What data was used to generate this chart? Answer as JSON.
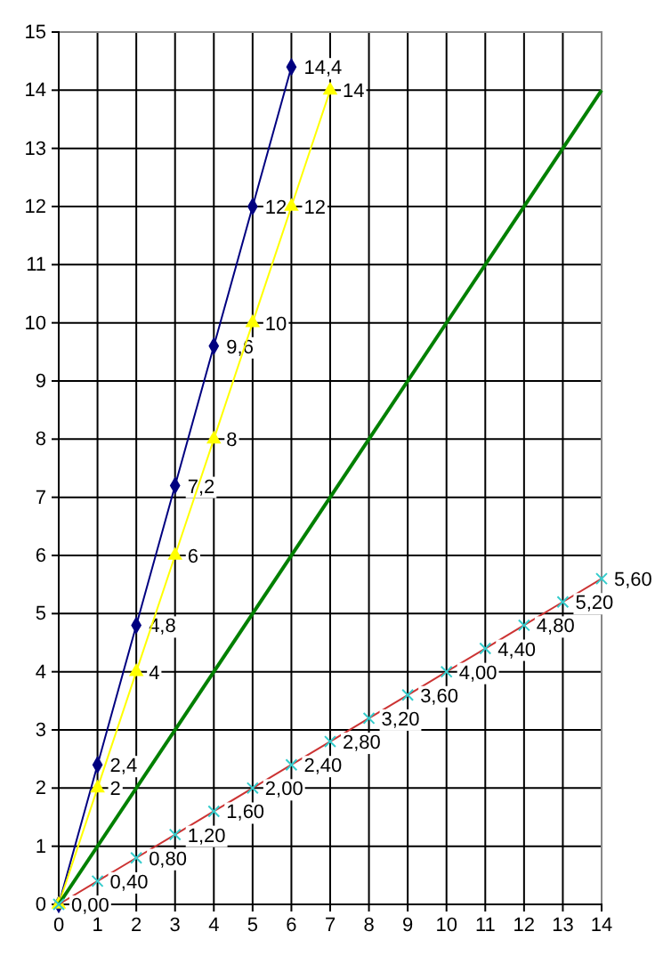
{
  "chart_data": {
    "type": "line",
    "xlim": [
      0,
      14
    ],
    "xticks": [
      0,
      1,
      2,
      3,
      4,
      5,
      6,
      7,
      8,
      9,
      10,
      11,
      12,
      13,
      14
    ],
    "ylim": [
      0,
      15
    ],
    "yticks": [
      0,
      1,
      2,
      3,
      4,
      5,
      6,
      7,
      8,
      9,
      10,
      11,
      12,
      13,
      14,
      15
    ],
    "grid": true,
    "series": [
      {
        "color": "#000080",
        "marker": "diamond",
        "x": [
          0,
          1,
          2,
          3,
          4,
          5,
          6
        ],
        "values": [
          0,
          2.4,
          4.8,
          7.2,
          9.6,
          12,
          14.4
        ],
        "value_labels": [
          null,
          "2,4",
          "4,8",
          "7,2",
          "9,6",
          "12",
          "14,4"
        ]
      },
      {
        "color": "#ffff00",
        "marker": "triangle",
        "x": [
          0,
          1,
          2,
          3,
          4,
          5,
          6,
          7
        ],
        "values": [
          0,
          2,
          4,
          6,
          8,
          10,
          12,
          14
        ],
        "value_labels": [
          null,
          "2",
          "4",
          "6",
          "8",
          "10",
          "12",
          "14"
        ]
      },
      {
        "color": "#008000",
        "marker": "none",
        "x": [
          0,
          14
        ],
        "values": [
          0,
          14
        ]
      },
      {
        "color": "#cc3333",
        "marker": "cross",
        "colors": [
          "#33cccc",
          "#33cccc",
          "#33cccc",
          "#33cccc",
          "#33cccc",
          "#33cccc",
          "#33cccc",
          "#33cccc",
          "#33cccc",
          "#33cccc",
          "#33cccc",
          "#33cccc",
          "#33cccc",
          "#33cccc",
          "#33cccc"
        ],
        "x": [
          0,
          1,
          2,
          3,
          4,
          5,
          6,
          7,
          8,
          9,
          10,
          11,
          12,
          13,
          14
        ],
        "values": [
          0,
          0.4,
          0.8,
          1.2,
          1.6,
          2,
          2.4,
          2.8,
          3.2,
          3.6,
          4,
          4.4,
          4.8,
          5.2,
          5.6
        ],
        "value_labels": [
          "0,00",
          "0,40",
          "0,80",
          "1,20",
          "1,60",
          "2,00",
          "2,40",
          "2,80",
          "3,20",
          "3,60",
          "4,00",
          "4,40",
          "4,80",
          "5,20",
          "5,60"
        ]
      }
    ]
  }
}
